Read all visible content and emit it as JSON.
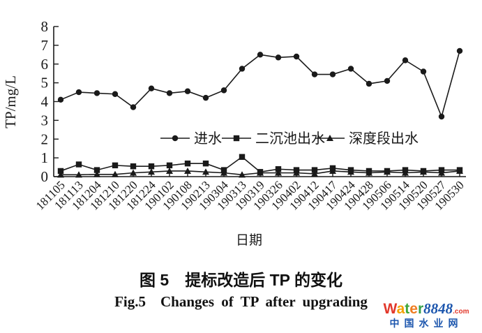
{
  "figure": {
    "caption_zh": "图 5 提标改造后 TP 的变化",
    "caption_en": "Fig.5 Changes of TP after upgrading"
  },
  "watermark": {
    "brand_letters": [
      {
        "ch": "W",
        "color": "#e2382b"
      },
      {
        "ch": "a",
        "color": "#f5a201"
      },
      {
        "ch": "t",
        "color": "#3fa63a"
      },
      {
        "ch": "e",
        "color": "#ef7d22"
      },
      {
        "ch": "r",
        "color": "#33a04a"
      }
    ],
    "number": "8848",
    "tld": ".com",
    "subtitle": "中国水业网",
    "blue": "#1b55ad",
    "red": "#e2382b"
  },
  "chart_data": {
    "type": "line",
    "title": "",
    "xlabel": "日期",
    "ylabel": "TP/mg/L",
    "ylim": [
      0,
      8
    ],
    "ytick_step": 1,
    "grid": false,
    "legend_position": "inside-center",
    "line_color": "#1a1a1a",
    "categories": [
      "181105",
      "181113",
      "181204",
      "181210",
      "181220",
      "181224",
      "190102",
      "190108",
      "190213",
      "190304",
      "190313",
      "190319",
      "190326",
      "190402",
      "190412",
      "190417",
      "190424",
      "190428",
      "190506",
      "190514",
      "190520",
      "190527",
      "190530"
    ],
    "series": [
      {
        "name": "进水",
        "marker": "circle",
        "values": [
          4.1,
          4.5,
          4.45,
          4.4,
          3.7,
          4.7,
          4.45,
          4.55,
          4.2,
          4.6,
          5.75,
          6.5,
          6.35,
          6.4,
          5.45,
          5.45,
          5.75,
          4.95,
          5.1,
          6.2,
          5.6,
          3.2,
          6.7
        ]
      },
      {
        "name": "二沉池出水",
        "marker": "square",
        "values": [
          0.3,
          0.65,
          0.35,
          0.6,
          0.55,
          0.55,
          0.6,
          0.7,
          0.7,
          0.35,
          1.05,
          0.25,
          0.4,
          0.35,
          0.35,
          0.45,
          0.35,
          0.3,
          0.3,
          0.35,
          0.3,
          0.35,
          0.35
        ]
      },
      {
        "name": "深度段出水",
        "marker": "triangle",
        "values": [
          0.1,
          0.1,
          0.12,
          0.12,
          0.2,
          0.25,
          0.3,
          0.3,
          0.25,
          0.2,
          0.1,
          0.2,
          0.2,
          0.2,
          0.15,
          0.3,
          0.25,
          0.2,
          0.25,
          0.2,
          0.25,
          0.2,
          0.3
        ]
      }
    ]
  }
}
